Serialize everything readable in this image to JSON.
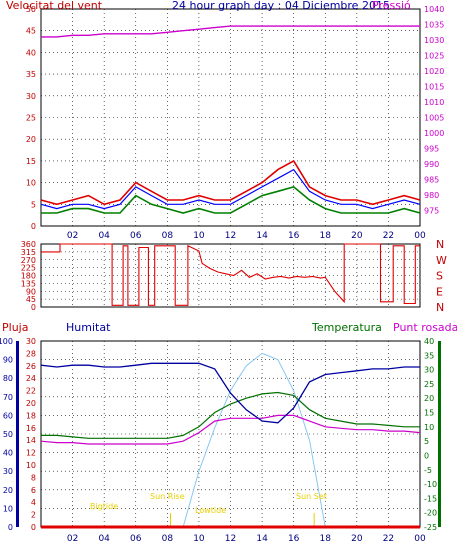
{
  "colors": {
    "wind": "#e00000",
    "gust_blue": "#0000ff",
    "gust_green": "#008000",
    "pressure": "#cc00cc",
    "direction": "#e00000",
    "humidity": "#0000a0",
    "temperature": "#007000",
    "dewpoint": "#cc00cc",
    "rain": "#e00000",
    "sun": "#88c8f0",
    "events": "#e8d000",
    "axis_left": "#c00000",
    "axis_right": "#cc00cc",
    "axis_blue": "#0000a0",
    "axis_green": "#007000"
  },
  "header": {
    "left_title": "Velocitat del vent",
    "center_title": "24 hour graph day : 04 Diciembre 2015",
    "right_title": "Pressió"
  },
  "middle": {
    "dir_labels": [
      "N",
      "W",
      "S",
      "E",
      "N"
    ]
  },
  "bottom_header": {
    "rain": "Pluja",
    "humidity": "Humitat",
    "temperature": "Temperatura",
    "dewpoint": "Punt rosada"
  },
  "events": {
    "bigtide": "Bigtide",
    "sunrise": "Sun Rise",
    "lowtide": "Lowtide",
    "sunset": "Sun Set"
  },
  "chart_data": [
    {
      "type": "line",
      "title": "24 hour graph day : 04 Diciembre 2015",
      "x_ticks": [
        "02",
        "04",
        "06",
        "08",
        "10",
        "12",
        "14",
        "16",
        "18",
        "20",
        "22",
        "00"
      ],
      "y_left": {
        "label": "Velocitat del vent",
        "range": [
          0,
          50
        ],
        "ticks": [
          0,
          5,
          10,
          15,
          20,
          25,
          30,
          35,
          40,
          45,
          50
        ]
      },
      "y_right": {
        "label": "Pressió",
        "range": [
          970,
          1040
        ],
        "ticks": [
          975,
          980,
          985,
          990,
          995,
          1000,
          1005,
          1010,
          1015,
          1020,
          1025,
          1030,
          1035,
          1040
        ]
      },
      "x_hours": [
        0,
        1,
        2,
        3,
        4,
        5,
        6,
        7,
        8,
        9,
        10,
        11,
        12,
        13,
        14,
        15,
        16,
        17,
        18,
        19,
        20,
        21,
        22,
        23,
        24
      ],
      "series": [
        {
          "name": "wind_gust",
          "values": [
            6,
            5,
            6,
            7,
            5,
            6,
            10,
            8,
            6,
            6,
            7,
            6,
            6,
            8,
            10,
            13,
            15,
            9,
            7,
            6,
            6,
            5,
            6,
            7,
            6
          ]
        },
        {
          "name": "wind_avg",
          "values": [
            5,
            4,
            5,
            5,
            4,
            5,
            9,
            7,
            5,
            5,
            6,
            5,
            5,
            7,
            9,
            11,
            13,
            8,
            6,
            5,
            5,
            4,
            5,
            6,
            5
          ]
        },
        {
          "name": "wind_low",
          "values": [
            3,
            3,
            4,
            4,
            3,
            3,
            7,
            5,
            4,
            3,
            4,
            3,
            3,
            5,
            7,
            8,
            9,
            6,
            4,
            3,
            3,
            3,
            3,
            4,
            3
          ]
        },
        {
          "name": "pressure",
          "values": [
            1031,
            1031,
            1031.5,
            1031.5,
            1032,
            1032,
            1032,
            1032,
            1032.5,
            1033,
            1033.5,
            1034,
            1034.5,
            1034.5,
            1034.5,
            1034.5,
            1034.5,
            1034.5,
            1034.5,
            1034.5,
            1034.5,
            1034.5,
            1034.5,
            1034.5,
            1034.5
          ]
        }
      ]
    },
    {
      "type": "line",
      "x_ticks": [
        "02",
        "04",
        "06",
        "08",
        "10",
        "12",
        "14",
        "16",
        "18",
        "20",
        "22",
        "00"
      ],
      "y_left": {
        "range": [
          0,
          360
        ],
        "ticks": [
          0,
          45,
          90,
          135,
          180,
          225,
          270,
          315,
          360
        ]
      },
      "series": [
        {
          "name": "wind_direction",
          "x": [
            0,
            1.2,
            1.2,
            4.5,
            4.5,
            5.2,
            5.2,
            5.5,
            5.5,
            6.2,
            6.2,
            6.8,
            6.8,
            7.2,
            7.2,
            8.5,
            8.5,
            9.3,
            9.3,
            10.0,
            10.2,
            10.7,
            11.2,
            11.7,
            12.2,
            12.7,
            13.2,
            13.7,
            14.2,
            14.7,
            15.2,
            15.7,
            16.2,
            16.7,
            17.2,
            17.7,
            18.0,
            18.3,
            18.6,
            19.2,
            19.2,
            21.5,
            21.5,
            22.3,
            22.3,
            23.0,
            23.0,
            23.7,
            23.7,
            24
          ],
          "values": [
            315,
            315,
            360,
            360,
            10,
            10,
            350,
            350,
            10,
            10,
            340,
            340,
            10,
            10,
            350,
            350,
            10,
            10,
            350,
            320,
            250,
            220,
            200,
            190,
            180,
            210,
            170,
            190,
            160,
            170,
            175,
            165,
            175,
            170,
            175,
            165,
            170,
            130,
            90,
            30,
            360,
            360,
            30,
            30,
            350,
            350,
            20,
            20,
            350,
            350
          ]
        }
      ]
    },
    {
      "type": "line",
      "x_ticks": [
        "02",
        "04",
        "06",
        "08",
        "10",
        "12",
        "14",
        "16",
        "18",
        "20",
        "22",
        "00"
      ],
      "y_left_outer": {
        "label": "Pluja",
        "range": [
          0,
          100
        ],
        "ticks": [
          0,
          10,
          20,
          30,
          40,
          50,
          60,
          70,
          80,
          90,
          100
        ]
      },
      "y_left_inner": {
        "range": [
          0,
          30
        ],
        "ticks": [
          0,
          2,
          4,
          6,
          8,
          10,
          12,
          14,
          16,
          18,
          20,
          22,
          24,
          26,
          28,
          30
        ]
      },
      "y_right": {
        "range": [
          -25,
          40
        ],
        "ticks": [
          -25,
          -20,
          -15,
          -10,
          -5,
          0,
          5,
          10,
          15,
          20,
          25,
          30,
          35,
          40
        ]
      },
      "x_hours": [
        0,
        1,
        2,
        3,
        4,
        5,
        6,
        7,
        8,
        9,
        10,
        11,
        12,
        13,
        14,
        15,
        16,
        17,
        18,
        19,
        20,
        21,
        22,
        23,
        24
      ],
      "series": [
        {
          "name": "Humitat",
          "values": [
            87,
            86,
            87,
            87,
            86,
            86,
            87,
            88,
            88,
            88,
            88,
            85,
            72,
            63,
            57,
            56,
            64,
            78,
            82,
            83,
            84,
            85,
            85,
            86,
            86
          ]
        },
        {
          "name": "Temperatura",
          "values": [
            7,
            7,
            6.5,
            6,
            6,
            6,
            6,
            6,
            6,
            7,
            10,
            15,
            18,
            20,
            21.5,
            22,
            21,
            16,
            13,
            12,
            11,
            11,
            10.5,
            10,
            10
          ]
        },
        {
          "name": "Punt rosada",
          "values": [
            5,
            4.5,
            4.5,
            4,
            4,
            4,
            4,
            4,
            4,
            5,
            8,
            12,
            13,
            13,
            13,
            14,
            14,
            12,
            10,
            9.5,
            9,
            9,
            8.5,
            8.5,
            8
          ]
        },
        {
          "name": "sun",
          "x": [
            9,
            10,
            11,
            12,
            13,
            14,
            15,
            16,
            17,
            18
          ],
          "values": [
            0,
            9,
            16,
            22,
            26,
            28,
            27,
            22,
            14,
            0
          ]
        },
        {
          "name": "rain",
          "values": [
            0,
            0,
            0,
            0,
            0,
            0,
            0,
            0,
            0,
            0,
            0,
            0,
            0,
            0,
            0,
            0,
            0,
            0,
            0,
            0,
            0,
            0,
            0,
            0,
            0
          ]
        }
      ]
    }
  ]
}
